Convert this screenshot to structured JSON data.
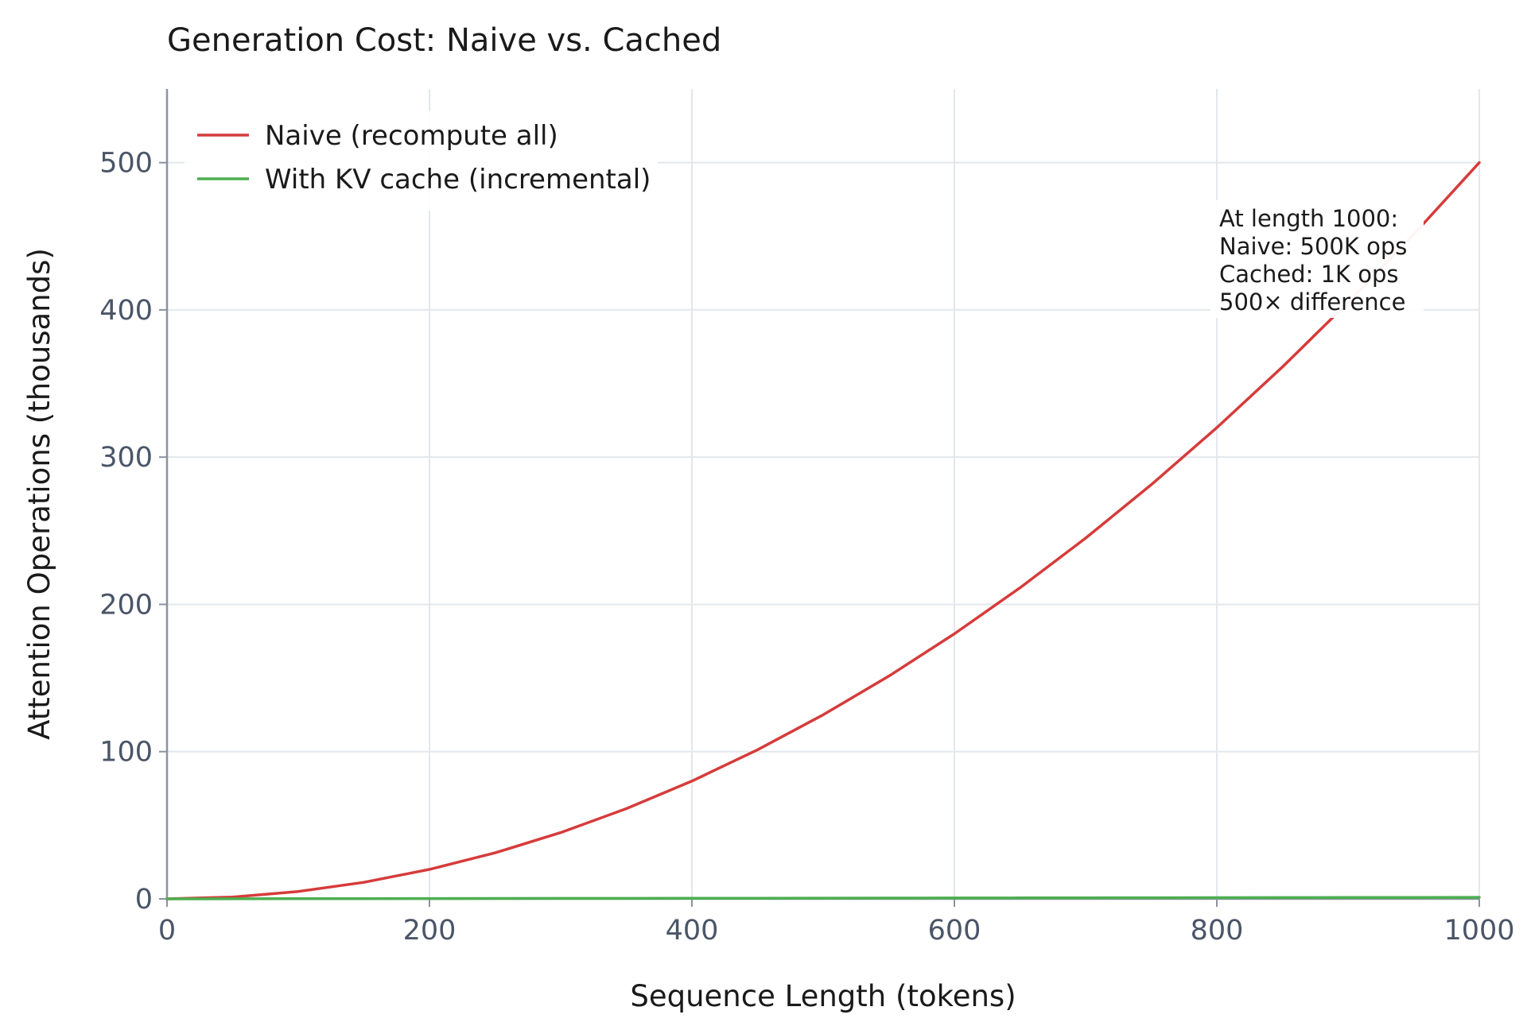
{
  "chart_data": {
    "type": "line",
    "title": "Generation Cost: Naive vs. Cached",
    "xlabel": "Sequence Length (tokens)",
    "ylabel": "Attention Operations (thousands)",
    "xlim": [
      0,
      1000
    ],
    "ylim": [
      0,
      550
    ],
    "xticks": [
      0,
      200,
      400,
      600,
      800,
      1000
    ],
    "yticks": [
      0,
      100,
      200,
      300,
      400,
      500
    ],
    "grid": true,
    "legend_position": "top-left",
    "x": [
      0,
      50,
      100,
      150,
      200,
      250,
      300,
      350,
      400,
      450,
      500,
      550,
      600,
      650,
      700,
      750,
      800,
      850,
      900,
      950,
      1000
    ],
    "series": [
      {
        "name": "Naive (recompute all)",
        "color": "#d63b3b",
        "values": [
          0,
          1.25,
          5,
          11.25,
          20,
          31.25,
          45,
          61.25,
          80,
          101.25,
          125,
          151.25,
          180,
          211.25,
          245,
          281.25,
          320,
          361.25,
          405,
          451.25,
          500
        ]
      },
      {
        "name": "With KV cache (incremental)",
        "color": "#4caf50",
        "values": [
          0,
          0.05,
          0.1,
          0.15,
          0.2,
          0.25,
          0.3,
          0.35,
          0.4,
          0.45,
          0.5,
          0.55,
          0.6,
          0.65,
          0.7,
          0.75,
          0.8,
          0.85,
          0.9,
          0.95,
          1.0
        ]
      }
    ],
    "annotation": {
      "lines": [
        "At length 1000:",
        "Naive: 500K ops",
        "Cached: 1K ops",
        "500× difference"
      ]
    },
    "colors": {
      "grid": "#e3e7eb",
      "axis": "#8a93a0",
      "tick_text": "#4a5568",
      "label_text": "#1a1a1a"
    }
  }
}
